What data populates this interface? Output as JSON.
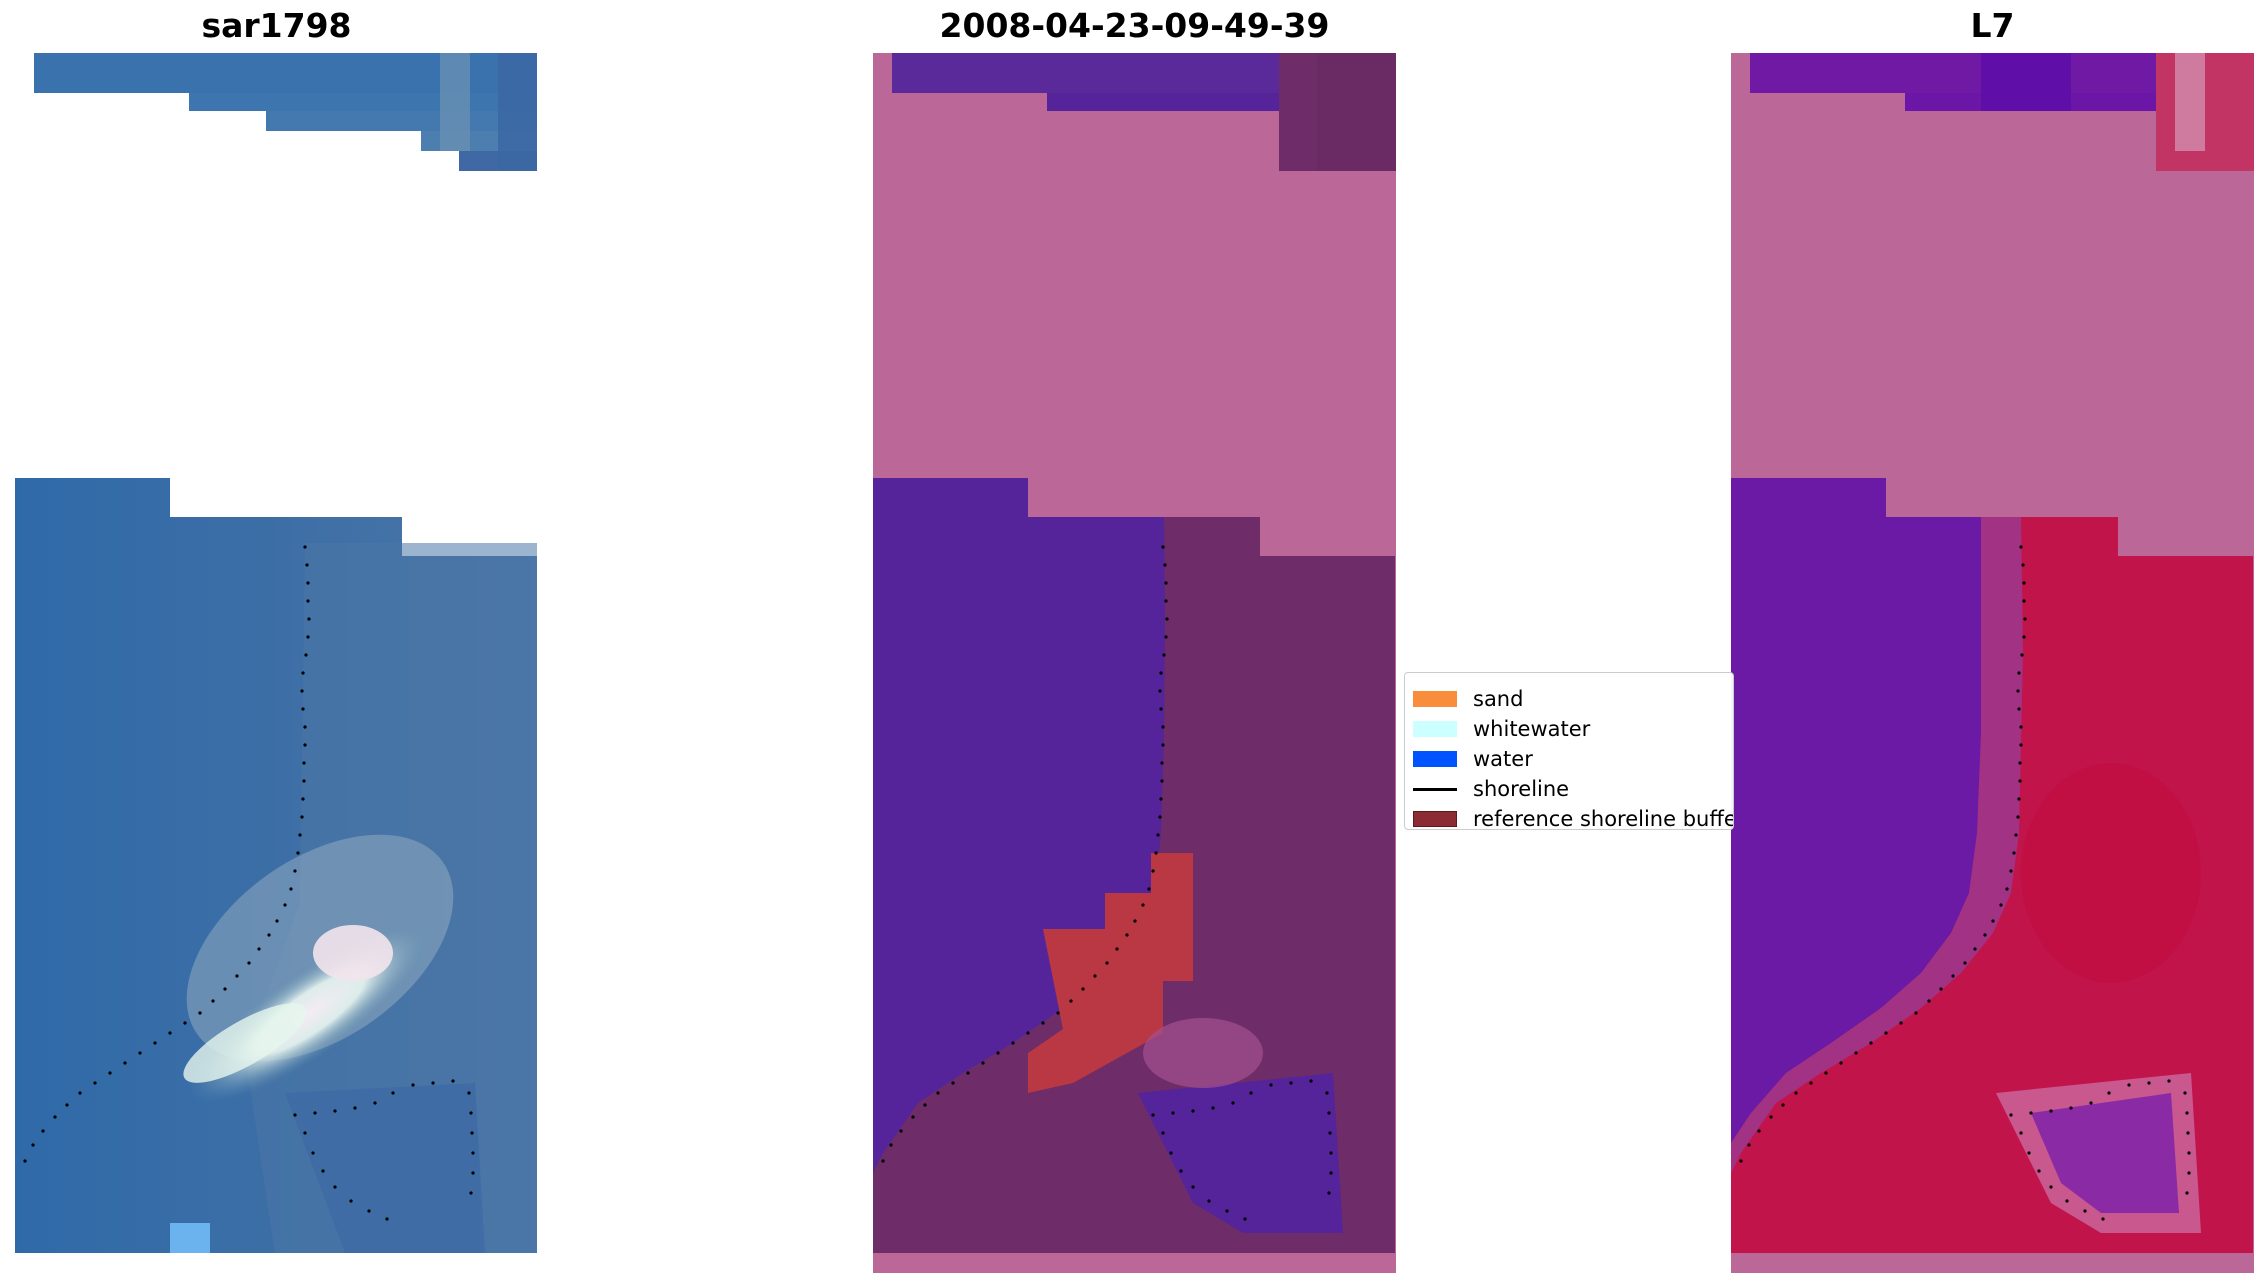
{
  "panels": [
    {
      "title": "sar1798"
    },
    {
      "title": "2008-04-23-09-49-39"
    },
    {
      "title": "L7"
    }
  ],
  "legend": {
    "items": [
      {
        "label": "sand",
        "color": "#f88d3b",
        "kind": "patch"
      },
      {
        "label": "whitewater",
        "color": "#ccffff",
        "kind": "patch"
      },
      {
        "label": "water",
        "color": "#0054ff",
        "kind": "patch"
      },
      {
        "label": "shoreline",
        "color": "#000000",
        "kind": "line"
      },
      {
        "label": "reference shoreline buffer",
        "color": "#8b2c34",
        "kind": "patch"
      }
    ]
  },
  "colors": {
    "rgb_water": "#3c6fa8",
    "rgb_whitewater": "#e8f4f0",
    "classified_water": "#55249a",
    "classified_land": "#6e2c68",
    "classified_buffer": "#b93843",
    "mask_pink": "#bb6797",
    "mndwi_water": "#6a1aa5",
    "mndwi_land": "#c1144b",
    "shoreline_points": "#000000"
  }
}
